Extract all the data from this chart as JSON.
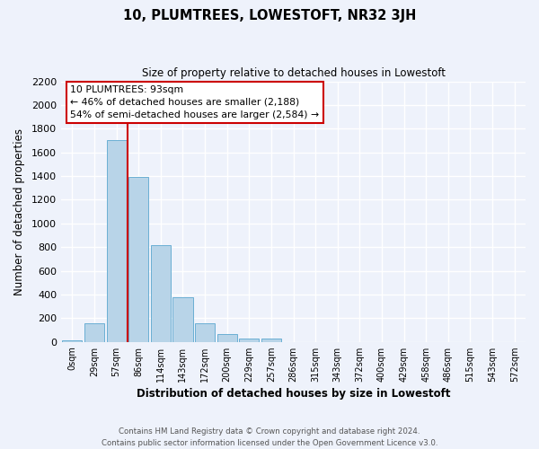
{
  "title": "10, PLUMTREES, LOWESTOFT, NR32 3JH",
  "subtitle": "Size of property relative to detached houses in Lowestoft",
  "xlabel": "Distribution of detached houses by size in Lowestoft",
  "ylabel": "Number of detached properties",
  "bar_labels": [
    "0sqm",
    "29sqm",
    "57sqm",
    "86sqm",
    "114sqm",
    "143sqm",
    "172sqm",
    "200sqm",
    "229sqm",
    "257sqm",
    "286sqm",
    "315sqm",
    "343sqm",
    "372sqm",
    "400sqm",
    "429sqm",
    "458sqm",
    "486sqm",
    "515sqm",
    "543sqm",
    "572sqm"
  ],
  "bar_values": [
    15,
    155,
    1700,
    1390,
    820,
    380,
    160,
    65,
    30,
    25,
    0,
    0,
    0,
    0,
    0,
    0,
    0,
    0,
    0,
    0,
    0
  ],
  "bar_color": "#b8d4e8",
  "bar_edge_color": "#6aafd4",
  "vline_color": "#cc0000",
  "ylim": [
    0,
    2200
  ],
  "yticks": [
    0,
    200,
    400,
    600,
    800,
    1000,
    1200,
    1400,
    1600,
    1800,
    2000,
    2200
  ],
  "annotation_title": "10 PLUMTREES: 93sqm",
  "annotation_line1": "← 46% of detached houses are smaller (2,188)",
  "annotation_line2": "54% of semi-detached houses are larger (2,584) →",
  "annotation_box_color": "#ffffff",
  "annotation_box_edge": "#cc0000",
  "footer_line1": "Contains HM Land Registry data © Crown copyright and database right 2024.",
  "footer_line2": "Contains public sector information licensed under the Open Government Licence v3.0.",
  "background_color": "#eef2fb",
  "grid_color": "#ffffff"
}
